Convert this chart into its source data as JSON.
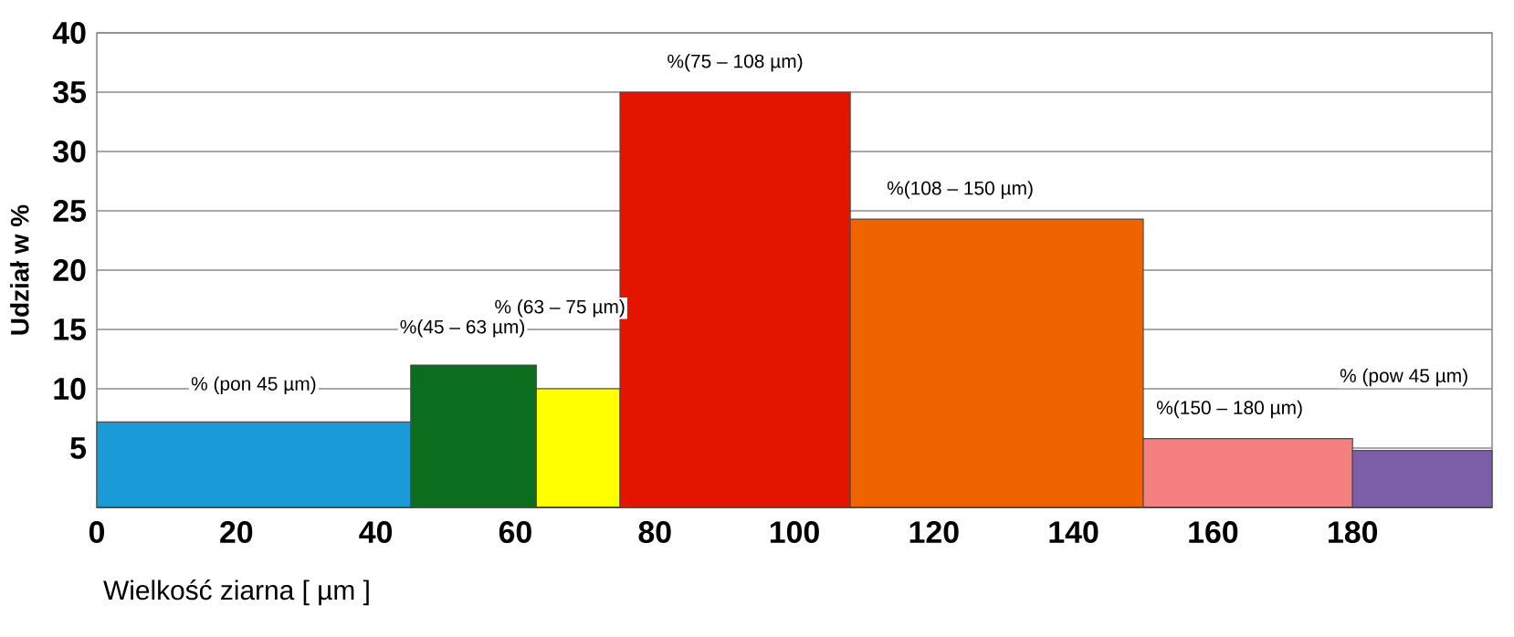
{
  "chart_data": {
    "type": "histogram",
    "xlabel": "Wielkość ziarna [ µm ]",
    "ylabel": "Udział w %",
    "bins": [
      0,
      45,
      63,
      75,
      108,
      150,
      180,
      200
    ],
    "values": [
      7.2,
      12,
      10,
      35,
      24.3,
      5.8,
      4.8
    ],
    "colors": [
      "#1a9ad6",
      "#0b6e1e",
      "#ffff00",
      "#e31400",
      "#f06400",
      "#f48080",
      "#7b5ea7"
    ],
    "xlim": [
      0,
      200
    ],
    "ylim": [
      0,
      40
    ],
    "xticks": [
      0,
      20,
      40,
      60,
      80,
      100,
      120,
      140,
      160,
      180
    ],
    "yticks": [
      5,
      10,
      15,
      20,
      25,
      30,
      35,
      40
    ],
    "grid": "y",
    "annotations": [
      "% (pon 45 µm)",
      "%(45 – 63 µm)",
      "% (63 – 75 µm)",
      "%(75 – 108 µm)",
      "%(108 – 150 µm)",
      "%(150 – 180 µm)",
      "% (pow 45 µm)"
    ]
  }
}
